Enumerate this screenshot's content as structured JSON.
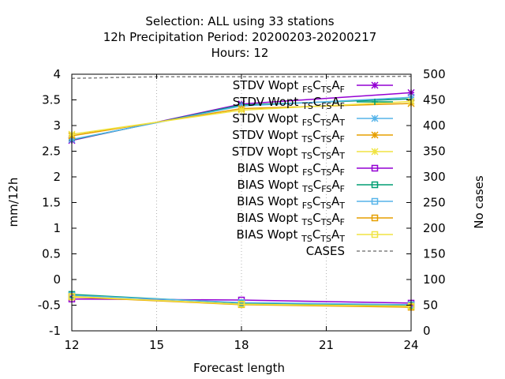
{
  "chart_data": {
    "type": "line",
    "title_lines": [
      "Selection: ALL using    33 stations",
      "12h Precipitation    Period: 20200203-20200217",
      "Hours:  12"
    ],
    "xlabel": "Forecast length",
    "ylabel": "mm/12h",
    "y2label": "No cases",
    "x": [
      12,
      15,
      18,
      21,
      24
    ],
    "xticks": [
      "12",
      "15",
      "18",
      "21",
      "24"
    ],
    "xlim": [
      12,
      24
    ],
    "ylim": [
      -1,
      4
    ],
    "yticks": [
      "-1",
      "-0.5",
      "0",
      "0.5",
      "1",
      "1.5",
      "2",
      "2.5",
      "3",
      "3.5",
      "4"
    ],
    "y2lim": [
      0,
      500
    ],
    "y2ticks": [
      "0",
      "50",
      "100",
      "150",
      "200",
      "250",
      "300",
      "350",
      "400",
      "450",
      "500"
    ],
    "grid": "vertical dotted lines at x ticks",
    "legend_position": "top-right",
    "series": [
      {
        "base": "STDV Wopt",
        "s1": "FS",
        "mid": "C",
        "s2": "TS",
        "end": "A",
        "s3": "F",
        "color": "#9400d3",
        "marker": "star",
        "axis": "y",
        "x": [
          12,
          18,
          24
        ],
        "values": [
          2.71,
          3.42,
          3.64
        ]
      },
      {
        "base": "STDV Wopt",
        "s1": "TS",
        "mid": "C",
        "s2": "FS",
        "end": "A",
        "s3": "F",
        "color": "#009e73",
        "marker": "plus",
        "axis": "y",
        "x": [
          12,
          18,
          24
        ],
        "values": [
          2.72,
          3.4,
          3.52
        ]
      },
      {
        "base": "STDV Wopt",
        "s1": "FS",
        "mid": "C",
        "s2": "TS",
        "end": "A",
        "s3": "T",
        "color": "#56b4e9",
        "marker": "star",
        "axis": "y",
        "x": [
          12,
          18,
          24
        ],
        "values": [
          2.73,
          3.38,
          3.55
        ]
      },
      {
        "base": "STDV Wopt",
        "s1": "TS",
        "mid": "C",
        "s2": "TS",
        "end": "A",
        "s3": "F",
        "color": "#e69f00",
        "marker": "star",
        "axis": "y",
        "x": [
          12,
          18,
          24
        ],
        "values": [
          2.8,
          3.33,
          3.43
        ]
      },
      {
        "base": "STDV Wopt",
        "s1": "TS",
        "mid": "C",
        "s2": "TS",
        "end": "A",
        "s3": "T",
        "color": "#f0e442",
        "marker": "star",
        "axis": "y",
        "x": [
          12,
          18,
          24
        ],
        "values": [
          2.83,
          3.3,
          3.47
        ]
      },
      {
        "base": "BIAS Wopt",
        "s1": "FS",
        "mid": "C",
        "s2": "TS",
        "end": "A",
        "s3": "F",
        "color": "#9400d3",
        "marker": "square",
        "axis": "y",
        "x": [
          12,
          18,
          24
        ],
        "values": [
          -0.38,
          -0.4,
          -0.46
        ]
      },
      {
        "base": "BIAS Wopt",
        "s1": "TS",
        "mid": "C",
        "s2": "FS",
        "end": "A",
        "s3": "F",
        "color": "#009e73",
        "marker": "square",
        "axis": "y",
        "x": [
          12,
          18,
          24
        ],
        "values": [
          -0.29,
          -0.46,
          -0.5
        ]
      },
      {
        "base": "BIAS Wopt",
        "s1": "FS",
        "mid": "C",
        "s2": "TS",
        "end": "A",
        "s3": "T",
        "color": "#56b4e9",
        "marker": "square",
        "axis": "y",
        "x": [
          12,
          18,
          24
        ],
        "values": [
          -0.31,
          -0.45,
          -0.49
        ]
      },
      {
        "base": "BIAS Wopt",
        "s1": "TS",
        "mid": "C",
        "s2": "TS",
        "end": "A",
        "s3": "F",
        "color": "#e69f00",
        "marker": "square",
        "axis": "y",
        "x": [
          12,
          18,
          24
        ],
        "values": [
          -0.34,
          -0.49,
          -0.54
        ]
      },
      {
        "base": "BIAS Wopt",
        "s1": "TS",
        "mid": "C",
        "s2": "TS",
        "end": "A",
        "s3": "T",
        "color": "#f0e442",
        "marker": "square",
        "axis": "y",
        "x": [
          12,
          18,
          24
        ],
        "values": [
          -0.33,
          -0.48,
          -0.52
        ]
      },
      {
        "name": "CASES",
        "color": "#808080",
        "marker": "none",
        "dash": true,
        "axis": "y2",
        "x": [
          12,
          15,
          18,
          21,
          24
        ],
        "values": [
          492,
          495,
          495,
          495,
          496
        ]
      }
    ]
  }
}
